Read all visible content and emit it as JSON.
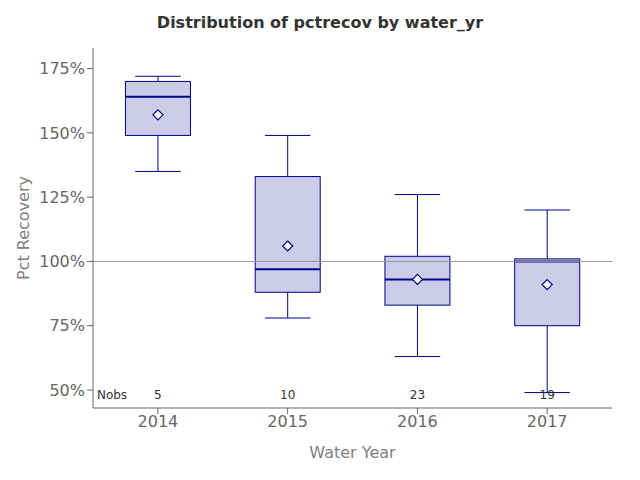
{
  "chart_data": {
    "type": "box",
    "title": "Distribution of pctrecov by water_yr",
    "x_label": "Water Year",
    "y_label": "Pct Recovery",
    "categories": [
      "2014",
      "2015",
      "2016",
      "2017"
    ],
    "q1": [
      149,
      88,
      83,
      75
    ],
    "median": [
      164,
      97,
      93,
      100
    ],
    "q3": [
      170,
      133,
      102,
      101
    ],
    "mean": [
      157,
      106,
      93,
      91
    ],
    "whisker_low": [
      135,
      78,
      63,
      49
    ],
    "whisker_high": [
      172,
      149,
      126,
      120
    ],
    "nobs_label": "Nobs",
    "nobs": [
      5,
      10,
      23,
      19
    ],
    "nobs_y": 48,
    "reference_line": 100,
    "ylim": [
      43,
      183
    ],
    "yticks": [
      {
        "value": 50,
        "label": "50%"
      },
      {
        "value": 75,
        "label": "75%"
      },
      {
        "value": 100,
        "label": "100%"
      },
      {
        "value": 125,
        "label": "125%"
      },
      {
        "value": 150,
        "label": "150%"
      },
      {
        "value": 175,
        "label": "175%"
      }
    ],
    "color": "#00008b",
    "grid": false
  }
}
